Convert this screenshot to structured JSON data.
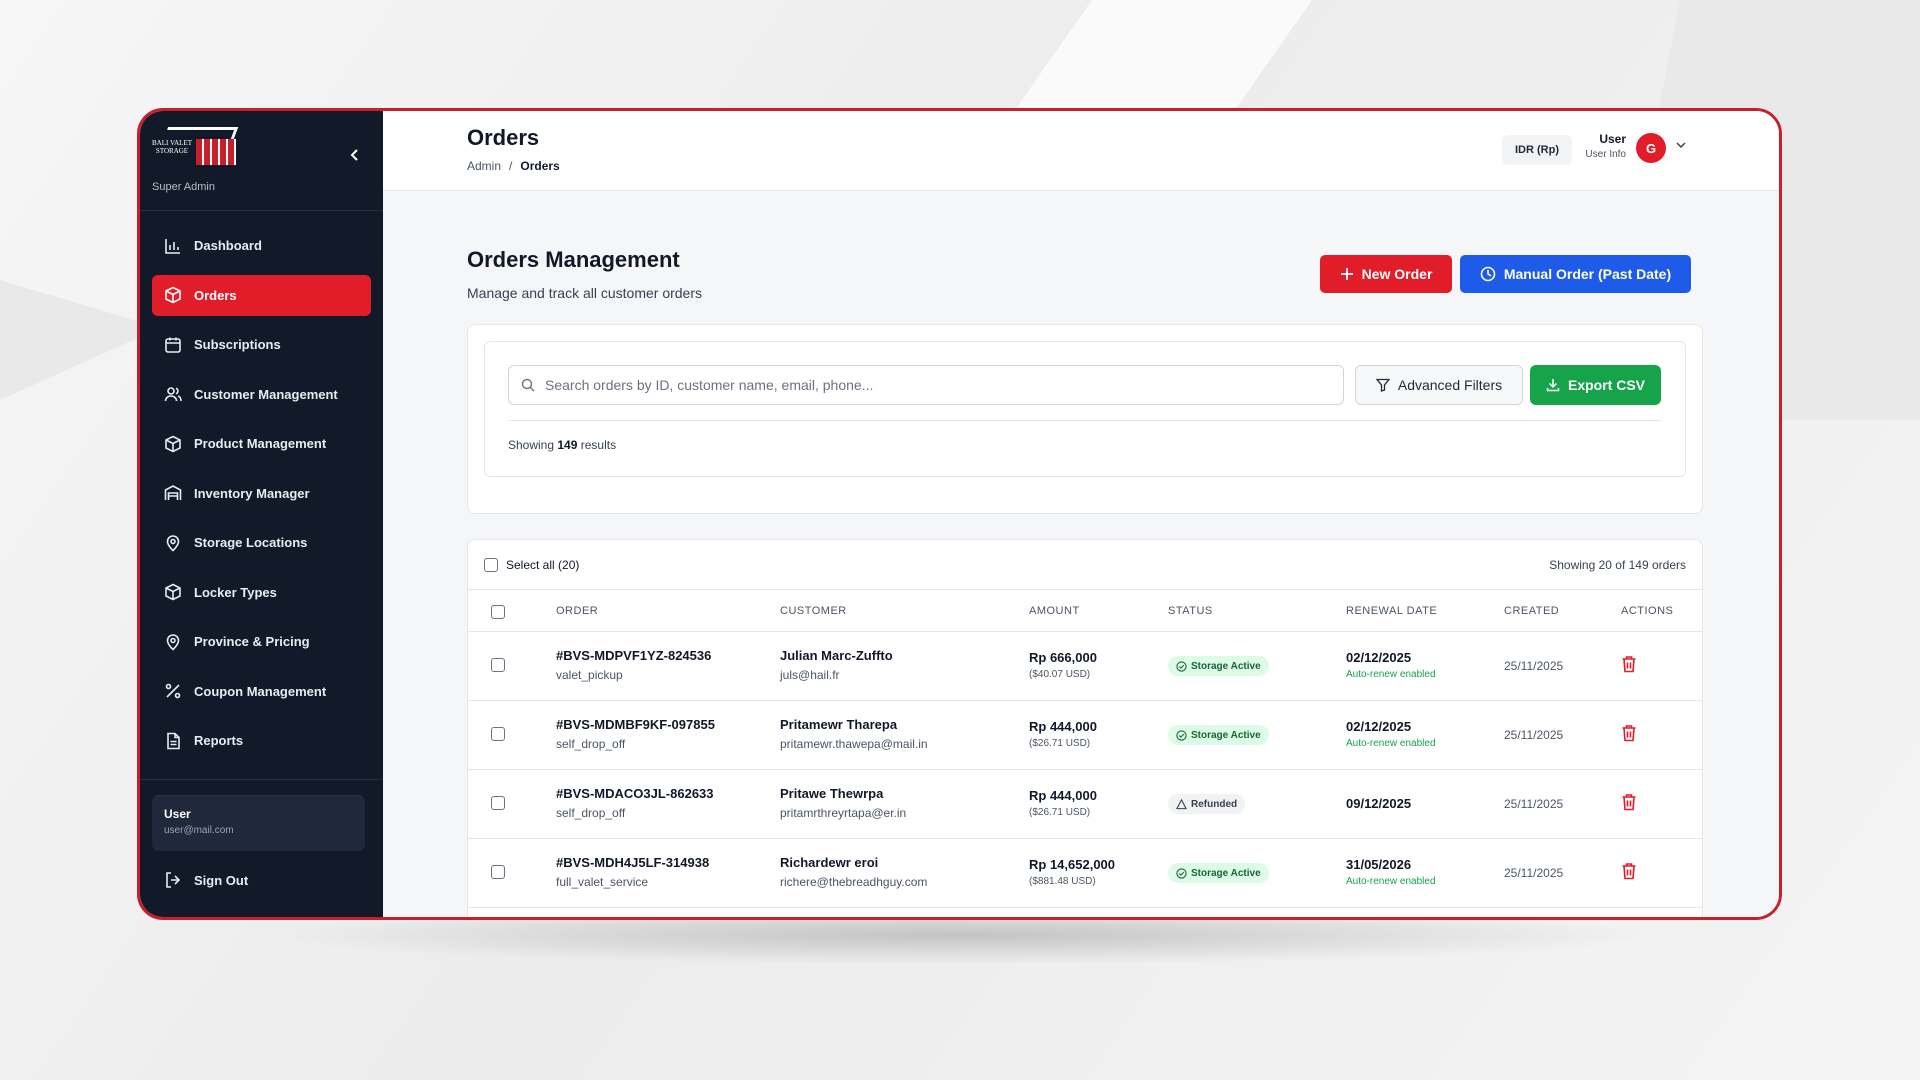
{
  "sidebar": {
    "logo_text": "BALI VALET STORAGE",
    "role": "Super Admin",
    "items": [
      {
        "label": "Dashboard",
        "icon": "bar-chart-icon"
      },
      {
        "label": "Orders",
        "icon": "box-icon",
        "active": true
      },
      {
        "label": "Subscriptions",
        "icon": "calendar-icon"
      },
      {
        "label": "Customer Management",
        "icon": "users-icon"
      },
      {
        "label": "Product Management",
        "icon": "box-icon"
      },
      {
        "label": "Inventory Manager",
        "icon": "warehouse-icon"
      },
      {
        "label": "Storage Locations",
        "icon": "map-pin-icon"
      },
      {
        "label": "Locker Types",
        "icon": "box-icon"
      },
      {
        "label": "Province & Pricing",
        "icon": "map-pin-icon"
      },
      {
        "label": "Coupon Management",
        "icon": "percent-icon"
      },
      {
        "label": "Reports",
        "icon": "file-icon"
      }
    ],
    "user": {
      "name": "User",
      "email": "user@mail.com"
    },
    "sign_out": "Sign Out"
  },
  "header": {
    "title": "Orders",
    "breadcrumb": [
      "Admin",
      "/",
      "Orders"
    ],
    "currency": "IDR (Rp)",
    "user_name": "User",
    "user_sub": "User Info",
    "avatar_letter": "G"
  },
  "page": {
    "heading": "Orders Management",
    "subheading": "Manage and track all customer orders",
    "new_order": "New Order",
    "manual_order": "Manual Order (Past Date)"
  },
  "search": {
    "placeholder": "Search orders by ID, customer name, email, phone...",
    "advanced_filters": "Advanced Filters",
    "export_csv": "Export CSV",
    "results_prefix": "Showing",
    "results_count": "149",
    "results_suffix": "results"
  },
  "table": {
    "select_all": "Select all (20)",
    "showing": "Showing 20 of 149 orders",
    "columns": [
      "ORDER",
      "CUSTOMER",
      "AMOUNT",
      "STATUS",
      "RENEWAL DATE",
      "CREATED",
      "ACTIONS"
    ],
    "rows": [
      {
        "order_id": "#BVS-MDPVF1YZ-824536",
        "service": "valet_pickup",
        "customer": "Julian Marc-Zuffto",
        "email": "juls@hail.fr",
        "amount": "Rp 666,000",
        "usd": "($40.07 USD)",
        "status": "Storage Active",
        "status_type": "active",
        "renewal": "02/12/2025",
        "renewal_note": "Auto-renew enabled",
        "created": "25/11/2025"
      },
      {
        "order_id": "#BVS-MDMBF9KF-097855",
        "service": "self_drop_off",
        "customer": "Pritamewr Tharepa",
        "email": "pritamewr.thawepa@mail.in",
        "amount": "Rp 444,000",
        "usd": "($26.71 USD)",
        "status": "Storage Active",
        "status_type": "active",
        "renewal": "02/12/2025",
        "renewal_note": "Auto-renew enabled",
        "created": "25/11/2025"
      },
      {
        "order_id": "#BVS-MDACO3JL-862633",
        "service": "self_drop_off",
        "customer": "Pritawe Thewrpa",
        "email": "pritamrthreyrtapa@er.in",
        "amount": "Rp 444,000",
        "usd": "($26.71 USD)",
        "status": "Refunded",
        "status_type": "refunded",
        "renewal": "09/12/2025",
        "renewal_note": "",
        "created": "25/11/2025"
      },
      {
        "order_id": "#BVS-MDH4J5LF-314938",
        "service": "full_valet_service",
        "customer": "Richardewr eroi",
        "email": "richere@thebreadhguy.com",
        "amount": "Rp 14,652,000",
        "usd": "($881.48 USD)",
        "status": "Storage Active",
        "status_type": "active",
        "renewal": "31/05/2026",
        "renewal_note": "Auto-renew enabled",
        "created": "25/11/2025"
      }
    ]
  },
  "colors": {
    "accent_red": "#e11d2a",
    "accent_blue": "#1d5be8",
    "accent_green": "#16a34a",
    "sidebar_bg": "#121a2a"
  }
}
